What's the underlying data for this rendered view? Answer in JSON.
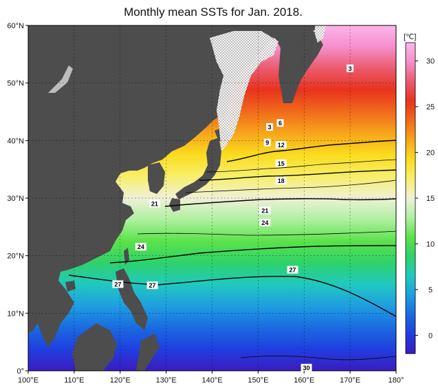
{
  "title": "Monthly mean SSTs for Jan. 2018.",
  "map": {
    "lon_range": [
      100,
      180
    ],
    "lat_range": [
      0,
      60
    ],
    "x_ticks": [
      "100°E",
      "110°E",
      "120°E",
      "130°E",
      "140°E",
      "150°E",
      "160°E",
      "170°E",
      "180°"
    ],
    "y_ticks": [
      "0°",
      "10°N",
      "20°N",
      "30°N",
      "40°N",
      "50°N",
      "60°N"
    ],
    "isotherm_labels": [
      {
        "text": "3",
        "lon": 170,
        "lat": 52.5
      },
      {
        "text": "3",
        "lon": 152.5,
        "lat": 42.3
      },
      {
        "text": "6",
        "lon": 154.8,
        "lat": 43.0
      },
      {
        "text": "9",
        "lon": 152.0,
        "lat": 39.6
      },
      {
        "text": "12",
        "lon": 155.0,
        "lat": 39.2
      },
      {
        "text": "15",
        "lon": 155.0,
        "lat": 36.0
      },
      {
        "text": "18",
        "lon": 155.0,
        "lat": 33.0
      },
      {
        "text": "21",
        "lon": 127.5,
        "lat": 29.0
      },
      {
        "text": "21",
        "lon": 151.5,
        "lat": 27.8
      },
      {
        "text": "24",
        "lon": 151.5,
        "lat": 25.7
      },
      {
        "text": "24",
        "lon": 124.5,
        "lat": 21.5
      },
      {
        "text": "27",
        "lon": 119.5,
        "lat": 15.0
      },
      {
        "text": "27",
        "lon": 127.0,
        "lat": 14.8
      },
      {
        "text": "27",
        "lon": 157.5,
        "lat": 17.5
      },
      {
        "text": "30",
        "lon": 160.5,
        "lat": 0.5
      }
    ]
  },
  "colorbar": {
    "unit": "[℃]",
    "range": [
      -2,
      32
    ],
    "ticks": [
      "0",
      "5",
      "10",
      "15",
      "20",
      "25",
      "30"
    ]
  },
  "colors": {
    "land": "#4d4d4d",
    "sea_ice": "#ffffff",
    "scale": [
      "#3b1bbf",
      "#1f3fdf",
      "#1a6be0",
      "#1f9ee0",
      "#20c9c0",
      "#2fd26a",
      "#5be24a",
      "#aef0a0",
      "#f0f0d8",
      "#f6ef6a",
      "#fadc1e",
      "#f7a51b",
      "#f06a1b",
      "#e8331f",
      "#ea5a6d",
      "#f58fcb",
      "#fbb7ea"
    ]
  }
}
